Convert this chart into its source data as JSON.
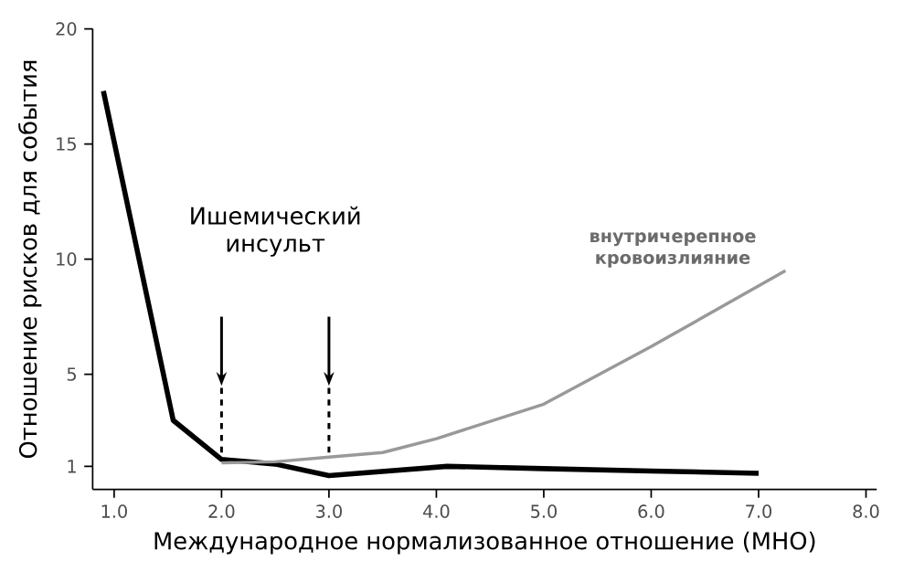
{
  "chart_data": {
    "type": "line",
    "xlabel": "Международное нормализованное отношение (МНО)",
    "ylabel": "Отношение рисков для события",
    "series": [
      {
        "name": "Ишемический инсульт",
        "color": "#000000",
        "x": [
          0.9,
          1.55,
          2.0,
          2.5,
          3.0,
          4.1,
          5.0,
          6.0,
          7.0
        ],
        "values": [
          17.3,
          3.0,
          1.3,
          1.1,
          0.6,
          1.0,
          0.9,
          0.8,
          0.7
        ]
      },
      {
        "name": "внутричерепное кровоизлияние",
        "color": "#999999",
        "x": [
          2.0,
          2.5,
          3.0,
          3.5,
          4.0,
          5.0,
          6.0,
          7.25
        ],
        "values": [
          1.15,
          1.2,
          1.4,
          1.6,
          2.2,
          3.7,
          6.2,
          9.5
        ]
      }
    ],
    "ref_lines": [
      {
        "axis": "x",
        "value": 2,
        "line_style": "dashed"
      },
      {
        "axis": "x",
        "value": 3,
        "line_style": "dashed"
      }
    ],
    "xlim": [
      0.8,
      8.1
    ],
    "ylim": [
      0,
      20
    ],
    "xticks": [
      {
        "value": 1,
        "label": "1.0"
      },
      {
        "value": 2,
        "label": "2.0"
      },
      {
        "value": 3,
        "label": "3.0"
      },
      {
        "value": 4,
        "label": "4.0"
      },
      {
        "value": 5,
        "label": "5.0"
      },
      {
        "value": 6,
        "label": "6.0"
      },
      {
        "value": 7,
        "label": "7.0"
      },
      {
        "value": 8,
        "label": "8.0"
      }
    ],
    "yticks": [
      1,
      5,
      10,
      15,
      20
    ],
    "grid": false,
    "legend": false
  }
}
